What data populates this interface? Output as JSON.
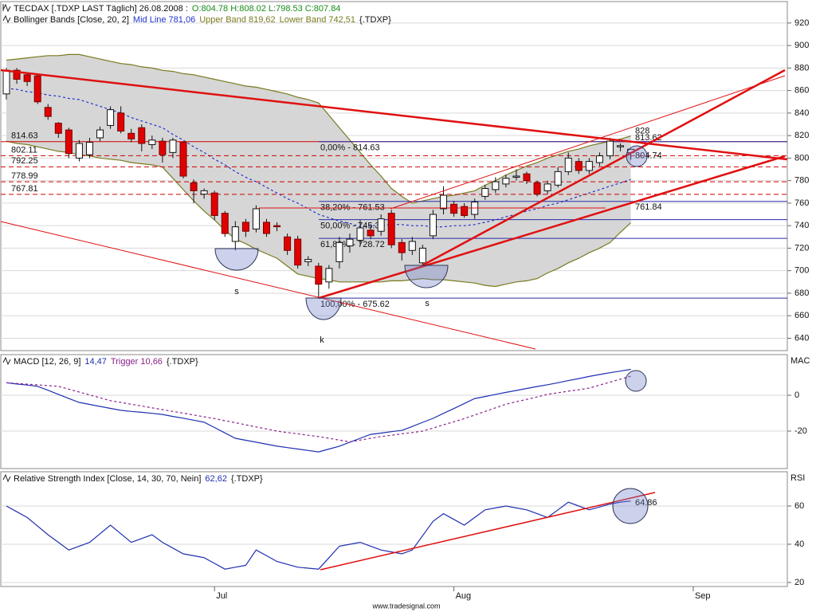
{
  "chart_data": [
    {
      "type": "candlestick",
      "title": "TECDAX [.TDXP LAST Täglich] 26.08.2008 :",
      "ohlc_label": "O:804.78 H:808.02 L:798.53 C:807.84",
      "ohlc_color": "#1a8c1a",
      "legend_prefix": "Bollinger Bands [Close, 20, 2]",
      "legend_suffix": "{.TDXP}",
      "categories": [
        null,
        null,
        null,
        null,
        null,
        null,
        null,
        null,
        null,
        null,
        null,
        null,
        null,
        null,
        null,
        null,
        null,
        null,
        null,
        null,
        "Jul",
        null,
        null,
        null,
        null,
        null,
        null,
        null,
        null,
        null,
        null,
        null,
        null,
        null,
        null,
        null,
        null,
        null,
        null,
        null,
        null,
        null,
        null,
        "Aug",
        null,
        null,
        null,
        null,
        null,
        null,
        null,
        null,
        null,
        null,
        null,
        null,
        null,
        null,
        null,
        null,
        null,
        null,
        null,
        null,
        null,
        null,
        "Sep"
      ],
      "open": [
        857,
        878,
        874,
        873,
        845,
        831,
        825,
        800,
        803,
        818,
        829,
        840,
        822,
        827,
        812,
        815,
        805,
        814,
        778,
        768,
        769,
        751,
        726,
        743,
        737,
        743,
        740,
        730,
        728,
        708,
        704,
        690,
        708,
        722,
        727,
        736,
        735,
        751,
        725,
        718,
        707,
        731,
        755,
        759,
        757,
        750,
        766,
        772,
        777,
        783,
        786,
        778,
        771,
        776,
        788,
        797,
        789,
        796,
        802,
        810,
        804.78,
        null,
        null,
        null,
        null,
        null,
        null
      ],
      "high": [
        880,
        880,
        876,
        875,
        848,
        832,
        827,
        816,
        818,
        828,
        846,
        846,
        826,
        830,
        820,
        818,
        818,
        815,
        781,
        773,
        771,
        753,
        744,
        746,
        758,
        746,
        743,
        733,
        731,
        713,
        707,
        705,
        730,
        733,
        745,
        740,
        750,
        754,
        728,
        730,
        723,
        754,
        775,
        762,
        760,
        764,
        776,
        783,
        785,
        790,
        788,
        780,
        780,
        792,
        805,
        800,
        800,
        805,
        818,
        813,
        808.02,
        null,
        null,
        null,
        null,
        null,
        null
      ],
      "low": [
        852,
        866,
        864,
        848,
        834,
        818,
        800,
        797,
        800,
        815,
        826,
        822,
        814,
        806,
        808,
        796,
        800,
        782,
        760,
        764,
        745,
        730,
        718,
        730,
        734,
        730,
        735,
        714,
        702,
        704,
        676,
        684,
        702,
        716,
        722,
        728,
        731,
        720,
        709,
        714,
        703,
        728,
        750,
        748,
        747,
        746,
        763,
        769,
        774,
        780,
        777,
        766,
        768,
        774,
        785,
        786,
        786,
        793,
        799,
        806,
        798.53,
        null,
        null,
        null,
        null,
        null,
        null
      ],
      "close": [
        878,
        870,
        868,
        850,
        837,
        822,
        804,
        813,
        814,
        825,
        843,
        824,
        817,
        813,
        816,
        803,
        816,
        784,
        771,
        771,
        749,
        733,
        739,
        735,
        755,
        733,
        739,
        718,
        705,
        710,
        688,
        702,
        725,
        728,
        738,
        731,
        746,
        723,
        716,
        726,
        720,
        750,
        767,
        751,
        749,
        761,
        773,
        779,
        782,
        784,
        780,
        768,
        777,
        788,
        800,
        789,
        797,
        802,
        815,
        811,
        807.84,
        null,
        null,
        null,
        null,
        null,
        null
      ],
      "up_color": "#ffffff",
      "down_color": "#e00000",
      "band_fill": "#d6d6d6",
      "series": [
        {
          "name": "Mid Line 781,06",
          "color": "#2233cc",
          "dash": true,
          "values": [
            862,
            861,
            859,
            858,
            856,
            855,
            853,
            852,
            849,
            846,
            843,
            840,
            836,
            833,
            830,
            827,
            821,
            816,
            810,
            805,
            799,
            794,
            788,
            783,
            779,
            774,
            769,
            764,
            760,
            755,
            750,
            747,
            744,
            742,
            739,
            740,
            740,
            741,
            741,
            740,
            740,
            739,
            739,
            740,
            740,
            741,
            743,
            745,
            748,
            750,
            753,
            755,
            758,
            760,
            763,
            766,
            769,
            772,
            775,
            778,
            781.06,
            null,
            null,
            null,
            null,
            null,
            null
          ]
        },
        {
          "name": "Upper Band 819,62",
          "color": "#7a7a20",
          "values": [
            887,
            888,
            889,
            890,
            891,
            891,
            892,
            892,
            890,
            888,
            886,
            884,
            883,
            881,
            880,
            878,
            877,
            875,
            874,
            872,
            870,
            868,
            866,
            864,
            863,
            861,
            859,
            857,
            854,
            852,
            849,
            838,
            827,
            816,
            805,
            794,
            784,
            773,
            766,
            760,
            762,
            764,
            766,
            767,
            769,
            771,
            776,
            780,
            785,
            789,
            793,
            796,
            800,
            803,
            806,
            808,
            811,
            813,
            815,
            817,
            819.62,
            null,
            null,
            null,
            null,
            null,
            null
          ]
        },
        {
          "name": "Lower Band 742,51",
          "color": "#7a7a20",
          "values": [
            815,
            813,
            812,
            810,
            808,
            806,
            805,
            803,
            802,
            800,
            799,
            798,
            796,
            795,
            794,
            792,
            782,
            772,
            762,
            753,
            745,
            736,
            728,
            724,
            719,
            715,
            711,
            704,
            697,
            695,
            693,
            692,
            690,
            690,
            690,
            690,
            690,
            691,
            691,
            692,
            693,
            692,
            692,
            691,
            690,
            689,
            687,
            686,
            688,
            690,
            691,
            693,
            698,
            702,
            707,
            711,
            716,
            720,
            725,
            734,
            742.51,
            null,
            null,
            null,
            null,
            null,
            null
          ]
        }
      ],
      "ylim": [
        629,
        939
      ],
      "yticks": [
        640,
        660,
        680,
        700,
        720,
        740,
        760,
        780,
        800,
        820,
        840,
        860,
        880,
        900,
        920
      ],
      "grid": true,
      "levels": [
        814.63,
        802.11,
        792.25,
        778.99,
        767.81
      ],
      "level_color": "#d00000",
      "fib": [
        {
          "value": 814.63,
          "label": "0,00% - 814.63"
        },
        {
          "value": 761.53,
          "label": "38,20% - 761.53"
        },
        {
          "value": 745.33,
          "label": "50,00% - 745.33"
        },
        {
          "value": 728.72,
          "label": "61,80% - 728.72"
        },
        {
          "value": 675.62,
          "label": "100,00% - 675.62"
        }
      ],
      "fib_color": "#2a2aa8",
      "trend_labels": [
        828,
        813.62,
        804.74,
        761.84
      ],
      "pattern_labels": [
        "s",
        "k",
        "s"
      ]
    },
    {
      "type": "line",
      "legend_prefix": "MACD [12, 26, 9]",
      "legend_suffix": "{.TDXP}",
      "axis_label": "MAC",
      "series": [
        {
          "name": "14,47",
          "color": "#1f2fb0",
          "values": [
            7,
            6.3,
            5.7,
            5,
            2.8,
            0.5,
            -1.8,
            -4,
            -5.1,
            -6.2,
            -7.3,
            -8.4,
            -9,
            -9.5,
            -10.1,
            -10.7,
            -11.8,
            -12.8,
            -13.9,
            -15,
            -18,
            -21,
            -24,
            -25.1,
            -26.2,
            -27.3,
            -28.4,
            -29.2,
            -30,
            -30.8,
            -31.6,
            -30,
            -28.4,
            -26.2,
            -24,
            -21.8,
            -21.1,
            -20.3,
            -19.6,
            -17.4,
            -15.1,
            -12.9,
            -10.1,
            -7.4,
            -4.6,
            -1.8,
            -0.7,
            0.5,
            1.6,
            2.7,
            3.8,
            4.9,
            5.9,
            7,
            8.2,
            9.3,
            10.5,
            11.6,
            12.6,
            13.5,
            14.47,
            null,
            null,
            null,
            null,
            null,
            null
          ]
        },
        {
          "name": "Trigger 10,66",
          "color": "#8a1f8a",
          "dash": true,
          "values": [
            7,
            6.6,
            6.2,
            5.8,
            5.4,
            5,
            3.4,
            1.8,
            0.2,
            -1.4,
            -3,
            -4,
            -5,
            -6,
            -7,
            -8,
            -9,
            -10,
            -11,
            -12,
            -13,
            -14.2,
            -15.3,
            -16.5,
            -17.7,
            -18.8,
            -20,
            -20.8,
            -21.5,
            -22.3,
            -23,
            -24,
            -25,
            -26,
            -25,
            -24,
            -23,
            -22.3,
            -21.5,
            -20.8,
            -20,
            -18.3,
            -16.5,
            -14.8,
            -13,
            -11,
            -9,
            -7,
            -5,
            -3.6,
            -2.3,
            -0.9,
            0.5,
            1.4,
            2.3,
            3.1,
            4,
            5.7,
            7.3,
            9,
            10.66,
            null,
            null,
            null,
            null,
            null,
            null
          ]
        }
      ],
      "ylim": [
        -40.9,
        22.7
      ],
      "yticks": [
        0,
        -20
      ],
      "grid": true
    },
    {
      "type": "line",
      "legend_prefix": "Relative Strength Index [Close, 14, 30, 70, Nein]",
      "legend_suffix": "{.TDXP}",
      "axis_label": "RSI",
      "series": [
        {
          "name": "62,62",
          "color": "#1f2fb0",
          "values": [
            60,
            57,
            54,
            49.5,
            45,
            41,
            37,
            39,
            41,
            45.5,
            50,
            45.5,
            41,
            43,
            45,
            41,
            38,
            35,
            34,
            33,
            30,
            27,
            28,
            29,
            37,
            34,
            31,
            29.5,
            28,
            27.5,
            27,
            33,
            39,
            40,
            41,
            39,
            37,
            36,
            35,
            37,
            44.5,
            52,
            56,
            53,
            50,
            54,
            58,
            59,
            60,
            59,
            58,
            56,
            54,
            58,
            62,
            60,
            58,
            59.5,
            61,
            62,
            62.62,
            null,
            null,
            null,
            null,
            null,
            null
          ]
        }
      ],
      "ylim": [
        17.9,
        77.9
      ],
      "yticks": [
        20,
        40,
        60
      ],
      "grid": true,
      "trend_labels": [
        64.86
      ]
    }
  ],
  "footer": "www.tradesignal.com"
}
